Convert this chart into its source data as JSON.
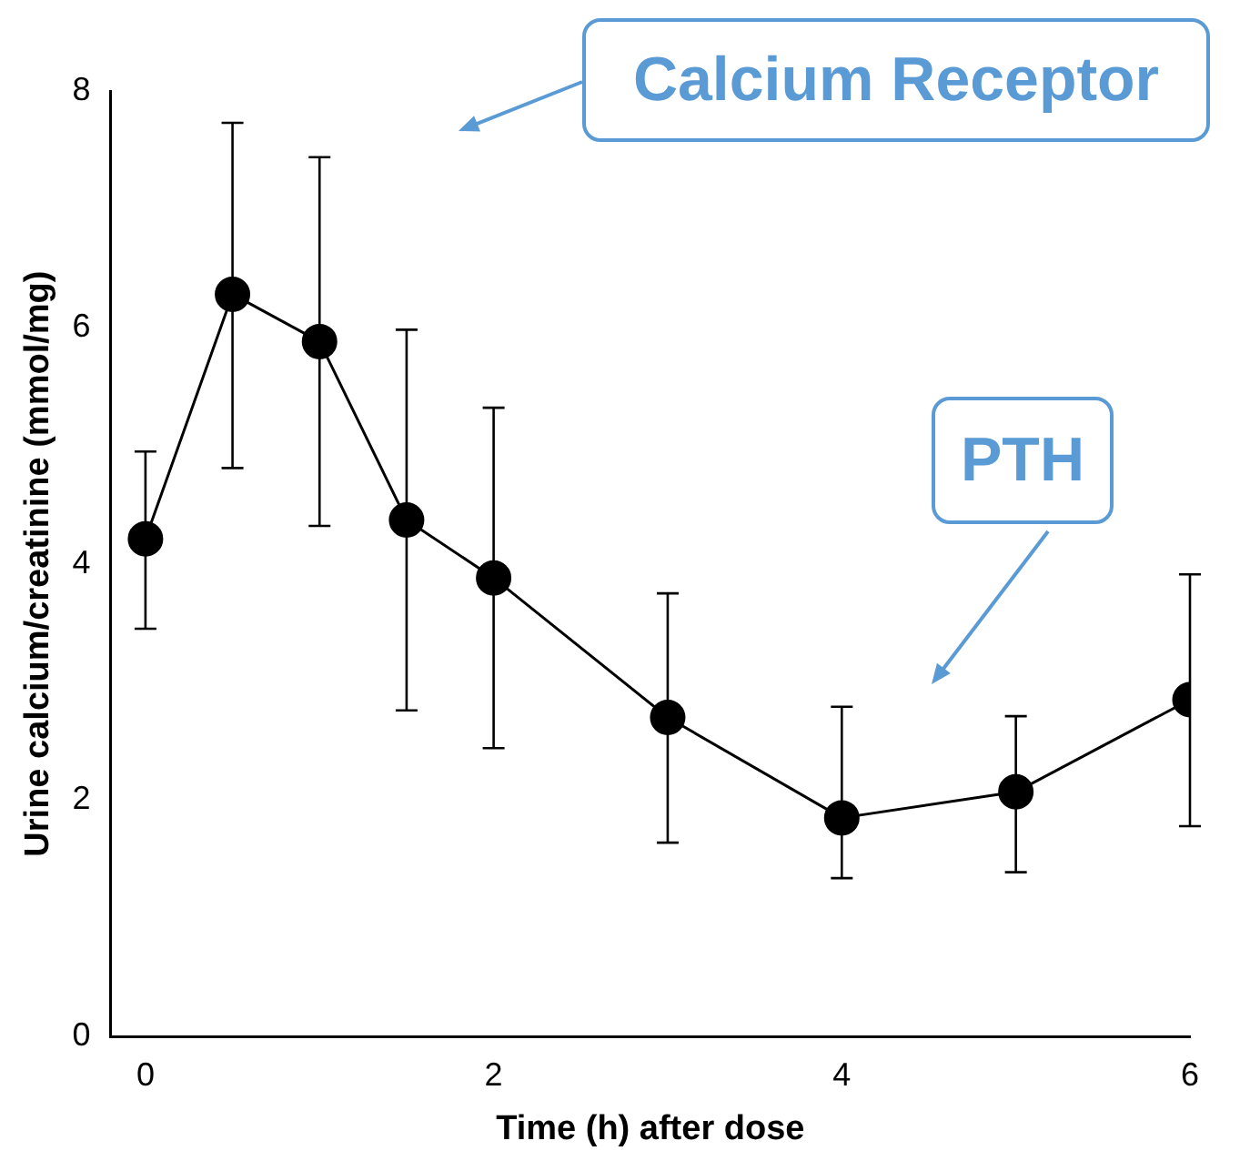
{
  "chart_data": {
    "type": "line",
    "xlabel": "Time (h) after dose",
    "ylabel": "Urine calcium/creatinine (mmol/mg)",
    "x": [
      0,
      0.5,
      1,
      1.5,
      2,
      3,
      4,
      5,
      6
    ],
    "series": [
      {
        "color": "#000000",
        "values": [
          4.21,
          6.28,
          5.88,
          4.37,
          3.88,
          2.7,
          1.85,
          2.07,
          2.85
        ],
        "errors": [
          [
            3.45,
            4.95
          ],
          [
            4.81,
            7.73
          ],
          [
            4.32,
            7.44
          ],
          [
            2.76,
            5.98
          ],
          [
            2.44,
            5.32
          ],
          [
            1.64,
            3.75
          ],
          [
            1.34,
            2.79
          ],
          [
            1.39,
            2.71
          ],
          [
            1.78,
            3.91
          ]
        ]
      }
    ],
    "xlim": [
      -0.2,
      6
    ],
    "xticks": [
      0,
      2,
      4,
      6
    ],
    "ylim": [
      0,
      8
    ],
    "yticks": [
      0,
      2,
      4,
      6,
      8
    ],
    "grid": false,
    "legend": false,
    "marker": "circle",
    "line_style": "solid",
    "annotations": [
      "Calcium Receptor",
      "PTH"
    ]
  }
}
